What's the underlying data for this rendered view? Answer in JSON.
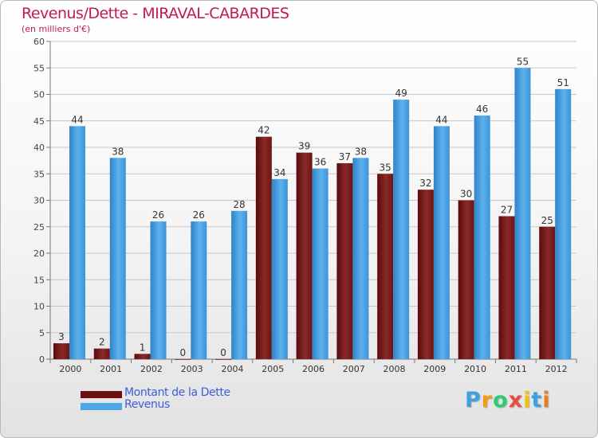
{
  "title": "Revenus/Dette - MIRAVAL-CABARDES",
  "subtitle": "(en milliers d'€)",
  "colors": {
    "title": "#c2185b",
    "dette": "#7a1c1c",
    "revenus": "#4ea6e6",
    "legend_text": "#3a5fd8"
  },
  "legend": [
    {
      "label": "Montant de la Dette",
      "color": "#6b0f0f"
    },
    {
      "label": "Revenus",
      "color": "#4ea6e6"
    }
  ],
  "logo": {
    "letters": [
      {
        "ch": "P",
        "color": "#3fa0e0"
      },
      {
        "ch": "r",
        "color": "#f39c12"
      },
      {
        "ch": "o",
        "color": "#2ecc71"
      },
      {
        "ch": "x",
        "color": "#e74c3c"
      },
      {
        "ch": "i",
        "color": "#f1c40f"
      },
      {
        "ch": "t",
        "color": "#3fa0e0"
      },
      {
        "ch": "i",
        "color": "#e67e22"
      }
    ]
  },
  "chart_data": {
    "type": "bar",
    "categories": [
      "2000",
      "2001",
      "2002",
      "2003",
      "2004",
      "2005",
      "2006",
      "2007",
      "2008",
      "2009",
      "2010",
      "2011",
      "2012"
    ],
    "series": [
      {
        "name": "Montant de la Dette",
        "values": [
          3,
          2,
          1,
          0,
          0,
          42,
          39,
          37,
          35,
          32,
          30,
          27,
          25
        ]
      },
      {
        "name": "Revenus",
        "values": [
          44,
          38,
          26,
          26,
          28,
          34,
          36,
          38,
          49,
          44,
          46,
          55,
          51
        ]
      }
    ],
    "ylim": [
      0,
      60
    ],
    "yticks": [
      0,
      5,
      10,
      15,
      20,
      25,
      30,
      35,
      40,
      45,
      50,
      55,
      60
    ],
    "grid": true,
    "xlabel": "",
    "ylabel": ""
  }
}
